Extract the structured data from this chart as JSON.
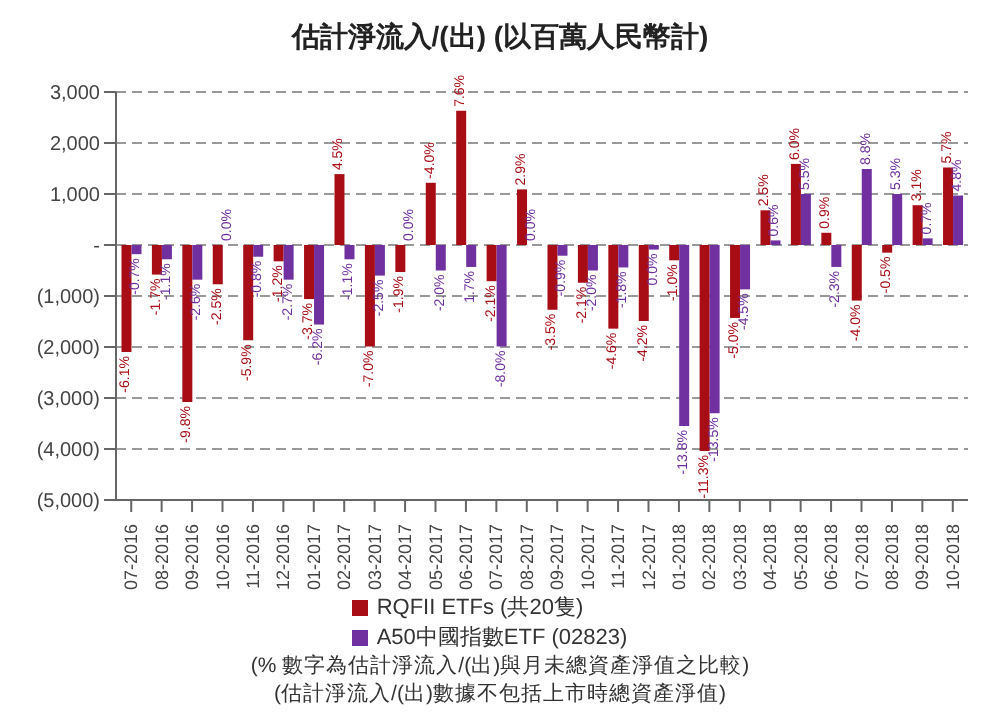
{
  "chart_data": {
    "type": "bar",
    "title": "估計淨流入/(出) (以百萬人民幣計)",
    "categories": [
      "07-2016",
      "08-2016",
      "09-2016",
      "10-2016",
      "11-2016",
      "12-2016",
      "01-2017",
      "02-2017",
      "03-2017",
      "04-2017",
      "05-2017",
      "06-2017",
      "07-2017",
      "08-2017",
      "09-2017",
      "10-2017",
      "11-2017",
      "12-2017",
      "01-2018",
      "02-2018",
      "03-2018",
      "04-2018",
      "05-2018",
      "06-2018",
      "07-2018",
      "08-2018",
      "09-2018",
      "10-2018"
    ],
    "series": [
      {
        "name": "RQFII ETFs (共20隻)",
        "color": "#a80c14",
        "values": [
          -2100,
          -580,
          -3080,
          -770,
          -1870,
          -320,
          -1060,
          1390,
          -1990,
          -530,
          1220,
          2630,
          -710,
          1090,
          -1270,
          -740,
          -1640,
          -1490,
          -300,
          -4040,
          -1430,
          680,
          1590,
          240,
          -1090,
          -150,
          780,
          1520
        ]
      },
      {
        "name": "A50中國指數ETF (02823)",
        "color": "#7030a0",
        "values": [
          -180,
          -280,
          -680,
          0,
          -230,
          -680,
          -1560,
          -280,
          -600,
          0,
          -500,
          -430,
          -1990,
          0,
          -210,
          -500,
          -440,
          -90,
          -3550,
          -3300,
          -870,
          90,
          1000,
          -430,
          1490,
          1000,
          130,
          970
        ]
      }
    ],
    "ylim": [
      -5000,
      3000
    ],
    "yticks": [
      {
        "value": -5000,
        "label": "(5,000)"
      },
      {
        "value": -4000,
        "label": "(4,000)"
      },
      {
        "value": -3000,
        "label": "(3,000)"
      },
      {
        "value": -2000,
        "label": "(2,000)"
      },
      {
        "value": -1000,
        "label": "(1,000)"
      },
      {
        "value": 0,
        "label": "-"
      },
      {
        "value": 1000,
        "label": "1,000"
      },
      {
        "value": 2000,
        "label": "2,000"
      },
      {
        "value": 3000,
        "label": "3,000"
      }
    ],
    "grid": "y",
    "legend": "bottom",
    "annotations": [
      {
        "text": "-6.1%",
        "x": "07-2016",
        "y": -2100
      },
      {
        "text": "-0.7%",
        "x": "07-2016",
        "y": -180
      },
      {
        "text": "-1.7%",
        "x": "08-2016",
        "y": -580
      },
      {
        "text": "-1.1%",
        "x": "08-2016",
        "y": -280
      },
      {
        "text": "-9.8%",
        "x": "09-2016",
        "y": -3080
      },
      {
        "text": "-2.6%",
        "x": "09-2016",
        "y": -680
      },
      {
        "text": "-2.5%",
        "x": "10-2016",
        "y": -770
      },
      {
        "text": "0.0%",
        "x": "10-2016",
        "y": 0
      },
      {
        "text": "-5.9%",
        "x": "11-2016",
        "y": -1870
      },
      {
        "text": "-0.8%",
        "x": "11-2016",
        "y": -230
      },
      {
        "text": "-1.2%",
        "x": "12-2016",
        "y": -320
      },
      {
        "text": "-2.7%",
        "x": "12-2016",
        "y": -680
      },
      {
        "text": "-3.7%",
        "x": "01-2017",
        "y": -1060
      },
      {
        "text": "-6.2%",
        "x": "01-2017",
        "y": -1560
      },
      {
        "text": "4.5%",
        "x": "02-2017",
        "y": 1390
      },
      {
        "text": "-1.1%",
        "x": "02-2017",
        "y": -280
      },
      {
        "text": "-7.0%",
        "x": "03-2017",
        "y": -1990
      },
      {
        "text": "-2.5%",
        "x": "03-2017",
        "y": -600
      },
      {
        "text": "-1.9%",
        "x": "04-2017",
        "y": -530
      },
      {
        "text": "0.0%",
        "x": "04-2017",
        "y": 0
      },
      {
        "text": "-4.0%",
        "x": "05-2017",
        "y": 1220
      },
      {
        "text": "-2.0%",
        "x": "05-2017",
        "y": -500
      },
      {
        "text": "7.6%",
        "x": "06-2017",
        "y": 2630
      },
      {
        "text": "1.7%",
        "x": "06-2017",
        "y": -430
      },
      {
        "text": "-2.1%",
        "x": "07-2017",
        "y": -710
      },
      {
        "text": "-8.0%",
        "x": "07-2017",
        "y": -1990
      },
      {
        "text": "2.9%",
        "x": "08-2017",
        "y": 1090
      },
      {
        "text": "0.0%",
        "x": "08-2017",
        "y": 0
      },
      {
        "text": "-3.5%",
        "x": "09-2017",
        "y": -1270
      },
      {
        "text": "-0.9%",
        "x": "09-2017",
        "y": -210
      },
      {
        "text": "-2.1%",
        "x": "10-2017",
        "y": -740
      },
      {
        "text": "-2.0%",
        "x": "10-2017",
        "y": -500
      },
      {
        "text": "-4.6%",
        "x": "11-2017",
        "y": -1640
      },
      {
        "text": "-1.8%",
        "x": "11-2017",
        "y": -440
      },
      {
        "text": "-4.2%",
        "x": "12-2017",
        "y": -1490
      },
      {
        "text": "0.0%",
        "x": "12-2017",
        "y": -90
      },
      {
        "text": "-1.0%",
        "x": "01-2018",
        "y": -300
      },
      {
        "text": "-13.8%",
        "x": "01-2018",
        "y": -3550
      },
      {
        "text": "-11.3%",
        "x": "02-2018",
        "y": -4040
      },
      {
        "text": "-13.5%",
        "x": "02-2018",
        "y": -3300
      },
      {
        "text": "-5.0%",
        "x": "03-2018",
        "y": -1430
      },
      {
        "text": "-4.5%",
        "x": "03-2018",
        "y": -870
      },
      {
        "text": "2.5%",
        "x": "04-2018",
        "y": 680
      },
      {
        "text": "0.6%",
        "x": "04-2018",
        "y": 90
      },
      {
        "text": "6.0%",
        "x": "05-2018",
        "y": 1590
      },
      {
        "text": "5.5%",
        "x": "05-2018",
        "y": 1000
      },
      {
        "text": "0.9%",
        "x": "06-2018",
        "y": 240
      },
      {
        "text": "-2.3%",
        "x": "06-2018",
        "y": -430
      },
      {
        "text": "-4.0%",
        "x": "07-2018",
        "y": -1090
      },
      {
        "text": "8.8%",
        "x": "07-2018",
        "y": 1490
      },
      {
        "text": "-0.5%",
        "x": "08-2018",
        "y": -150
      },
      {
        "text": "5.3%",
        "x": "08-2018",
        "y": 1000
      },
      {
        "text": "3.1%",
        "x": "09-2018",
        "y": 780
      },
      {
        "text": "0.7%",
        "x": "09-2018",
        "y": 130
      },
      {
        "text": "5.7%",
        "x": "10-2018",
        "y": 1520
      },
      {
        "text": "4.8%",
        "x": "10-2018",
        "y": 970
      },
      "(% 數字為估計淨流入/(出)與月未總資產淨值之比較)",
      "(估計淨流入/(出)數據不包括上市時總資產淨值)"
    ]
  }
}
